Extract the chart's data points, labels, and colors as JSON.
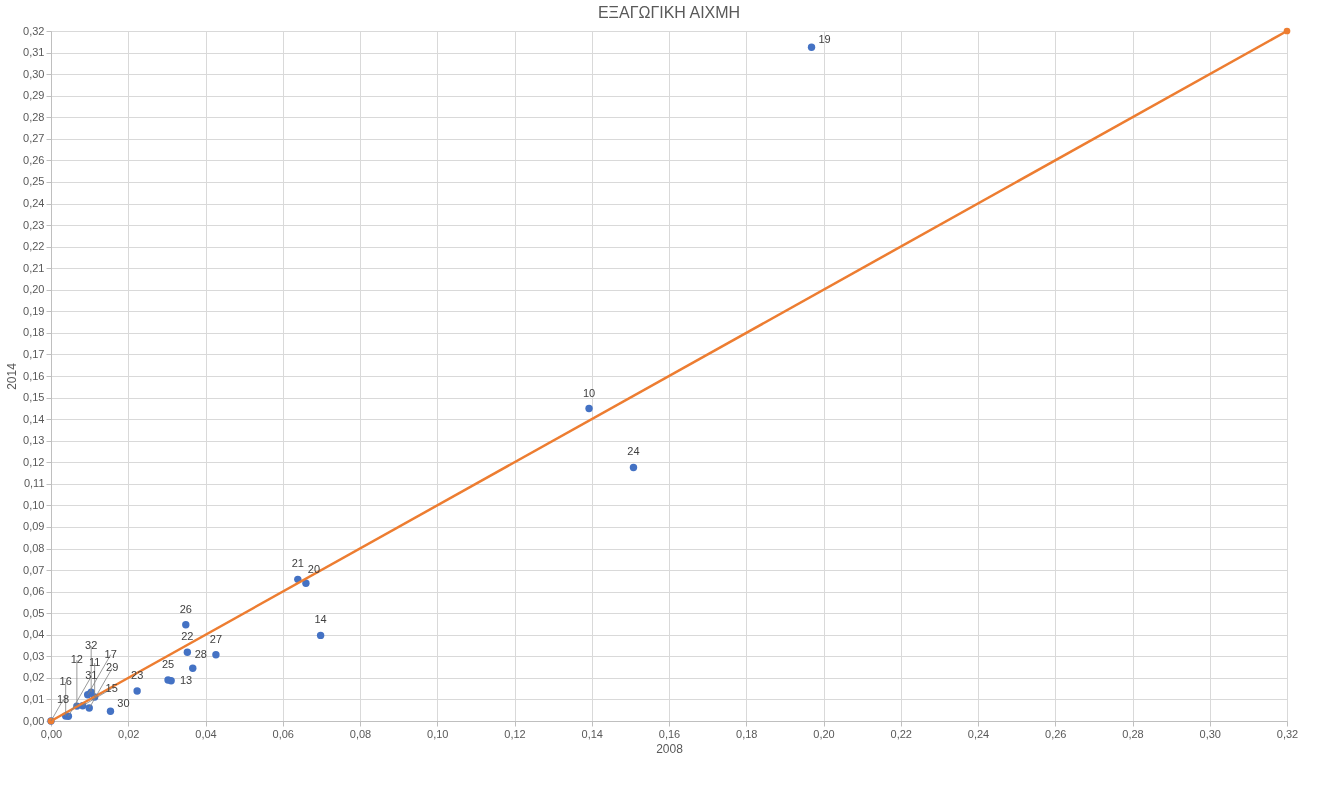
{
  "chart_data": {
    "type": "scatter",
    "title": "ΕΞΑΓΩΓΙΚΗ ΑΙΧΜΗ",
    "xlabel": "2008",
    "ylabel": "2014",
    "series": [
      {
        "type": "scatter",
        "color": "#4472c4",
        "marker": "circle",
        "x": [
          0.0,
          0.0038,
          0.0045,
          0.0067,
          0.0082,
          0.0099,
          0.0095,
          0.0104,
          0.0113,
          0.0154,
          0.0223,
          0.0303,
          0.0311,
          0.0349,
          0.0353,
          0.0367,
          0.0427,
          0.0698,
          0.0639,
          0.066,
          0.1393,
          0.1508,
          0.1969
        ],
        "values": [
          0.0,
          0.0023,
          0.0022,
          0.0069,
          0.0071,
          0.006,
          0.0122,
          0.0134,
          0.0111,
          0.0045,
          0.0139,
          0.019,
          0.0187,
          0.0446,
          0.0319,
          0.0245,
          0.0307,
          0.0397,
          0.0657,
          0.0639,
          0.1449,
          0.1176,
          0.3125
        ]
      },
      {
        "type": "line",
        "color": "#ed7d31",
        "marker": "circle",
        "x": [
          0.0,
          0.32
        ],
        "values": [
          0.0,
          0.32
        ]
      }
    ],
    "annotations": [
      {
        "text": "18",
        "x": 0.0,
        "y": 0.0
      },
      {
        "text": "16",
        "x": 0.0038,
        "y": 0.0023
      },
      {
        "text": "31",
        "x": 0.0045,
        "y": 0.0022
      },
      {
        "text": "12",
        "x": 0.0067,
        "y": 0.0069
      },
      {
        "text": "15",
        "x": 0.0082,
        "y": 0.0071
      },
      {
        "text": "29",
        "x": 0.0099,
        "y": 0.006
      },
      {
        "text": "17",
        "x": 0.0095,
        "y": 0.0122
      },
      {
        "text": "32",
        "x": 0.0104,
        "y": 0.0134
      },
      {
        "text": "11",
        "x": 0.0113,
        "y": 0.0111
      },
      {
        "text": "30",
        "x": 0.0154,
        "y": 0.0045
      },
      {
        "text": "23",
        "x": 0.0223,
        "y": 0.0139
      },
      {
        "text": "25",
        "x": 0.0303,
        "y": 0.019
      },
      {
        "text": "13",
        "x": 0.0311,
        "y": 0.0187
      },
      {
        "text": "26",
        "x": 0.0349,
        "y": 0.0446
      },
      {
        "text": "22",
        "x": 0.0353,
        "y": 0.0319
      },
      {
        "text": "28",
        "x": 0.0367,
        "y": 0.0245
      },
      {
        "text": "27",
        "x": 0.0427,
        "y": 0.0307
      },
      {
        "text": "14",
        "x": 0.0698,
        "y": 0.0397
      },
      {
        "text": "21",
        "x": 0.0639,
        "y": 0.0657
      },
      {
        "text": "20",
        "x": 0.066,
        "y": 0.0639
      },
      {
        "text": "10",
        "x": 0.1393,
        "y": 0.1449
      },
      {
        "text": "24",
        "x": 0.1508,
        "y": 0.1176
      },
      {
        "text": "19",
        "x": 0.1969,
        "y": 0.3125
      }
    ],
    "xlim": [
      0,
      0.32
    ],
    "ylim": [
      0,
      0.32
    ],
    "xticks": [
      {
        "value": 0,
        "label": "0,00"
      },
      {
        "value": 0.02,
        "label": "0,02"
      },
      {
        "value": 0.04,
        "label": "0,04"
      },
      {
        "value": 0.06,
        "label": "0,06"
      },
      {
        "value": 0.08,
        "label": "0,08"
      },
      {
        "value": 0.1,
        "label": "0,10"
      },
      {
        "value": 0.12,
        "label": "0,12"
      },
      {
        "value": 0.14,
        "label": "0,14"
      },
      {
        "value": 0.16,
        "label": "0,16"
      },
      {
        "value": 0.18,
        "label": "0,18"
      },
      {
        "value": 0.2,
        "label": "0,20"
      },
      {
        "value": 0.22,
        "label": "0,22"
      },
      {
        "value": 0.24,
        "label": "0,24"
      },
      {
        "value": 0.26,
        "label": "0,26"
      },
      {
        "value": 0.28,
        "label": "0,28"
      },
      {
        "value": 0.3,
        "label": "0,30"
      },
      {
        "value": 0.32,
        "label": "0,32"
      }
    ],
    "yticks": [
      {
        "value": 0,
        "label": "0,00"
      },
      {
        "value": 0.01,
        "label": "0,01"
      },
      {
        "value": 0.02,
        "label": "0,02"
      },
      {
        "value": 0.03,
        "label": "0,03"
      },
      {
        "value": 0.04,
        "label": "0,04"
      },
      {
        "value": 0.05,
        "label": "0,05"
      },
      {
        "value": 0.06,
        "label": "0,06"
      },
      {
        "value": 0.07,
        "label": "0,07"
      },
      {
        "value": 0.08,
        "label": "0,08"
      },
      {
        "value": 0.09,
        "label": "0,09"
      },
      {
        "value": 0.1,
        "label": "0,10"
      },
      {
        "value": 0.11,
        "label": "0,11"
      },
      {
        "value": 0.12,
        "label": "0,12"
      },
      {
        "value": 0.13,
        "label": "0,13"
      },
      {
        "value": 0.14,
        "label": "0,14"
      },
      {
        "value": 0.15,
        "label": "0,15"
      },
      {
        "value": 0.16,
        "label": "0,16"
      },
      {
        "value": 0.17,
        "label": "0,17"
      },
      {
        "value": 0.18,
        "label": "0,18"
      },
      {
        "value": 0.19,
        "label": "0,19"
      },
      {
        "value": 0.2,
        "label": "0,20"
      },
      {
        "value": 0.21,
        "label": "0,21"
      },
      {
        "value": 0.22,
        "label": "0,22"
      },
      {
        "value": 0.23,
        "label": "0,23"
      },
      {
        "value": 0.24,
        "label": "0,24"
      },
      {
        "value": 0.25,
        "label": "0,25"
      },
      {
        "value": 0.26,
        "label": "0,26"
      },
      {
        "value": 0.27,
        "label": "0,27"
      },
      {
        "value": 0.28,
        "label": "0,28"
      },
      {
        "value": 0.29,
        "label": "0,29"
      },
      {
        "value": 0.3,
        "label": "0,30"
      },
      {
        "value": 0.31,
        "label": "0,31"
      },
      {
        "value": 0.32,
        "label": "0,32"
      }
    ],
    "grid": true
  }
}
